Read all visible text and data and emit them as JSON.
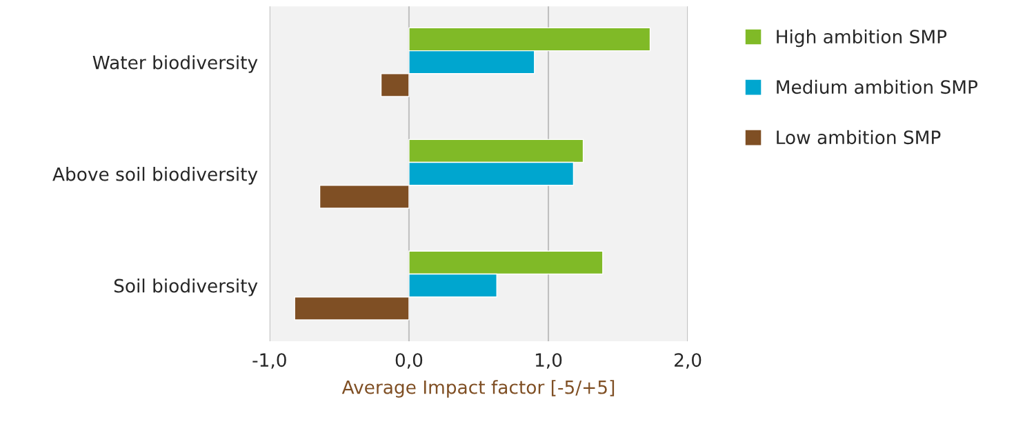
{
  "chart_data": {
    "type": "bar",
    "orientation": "horizontal",
    "xlabel": "Average Impact factor [-5/+5]",
    "categories": [
      "Water biodiversity",
      "Above soil biodiversity",
      "Soil biodiversity"
    ],
    "series": [
      {
        "name": "High ambition SMP",
        "color": "#80ba27",
        "values": [
          1.73,
          1.25,
          1.39
        ]
      },
      {
        "name": "Medium ambition SMP",
        "color": "#00a6cf",
        "values": [
          0.9,
          1.18,
          0.63
        ]
      },
      {
        "name": "Low ambition SMP",
        "color": "#7f4f24",
        "values": [
          -0.2,
          -0.64,
          -0.82
        ]
      }
    ],
    "xlim": [
      -1,
      2
    ],
    "xticks": [
      {
        "value": -1,
        "label": "-1,0"
      },
      {
        "value": 0,
        "label": "0,0"
      },
      {
        "value": 1,
        "label": "1,0"
      },
      {
        "value": 2,
        "label": "2,0"
      }
    ],
    "grid": "x",
    "legend": "right"
  }
}
